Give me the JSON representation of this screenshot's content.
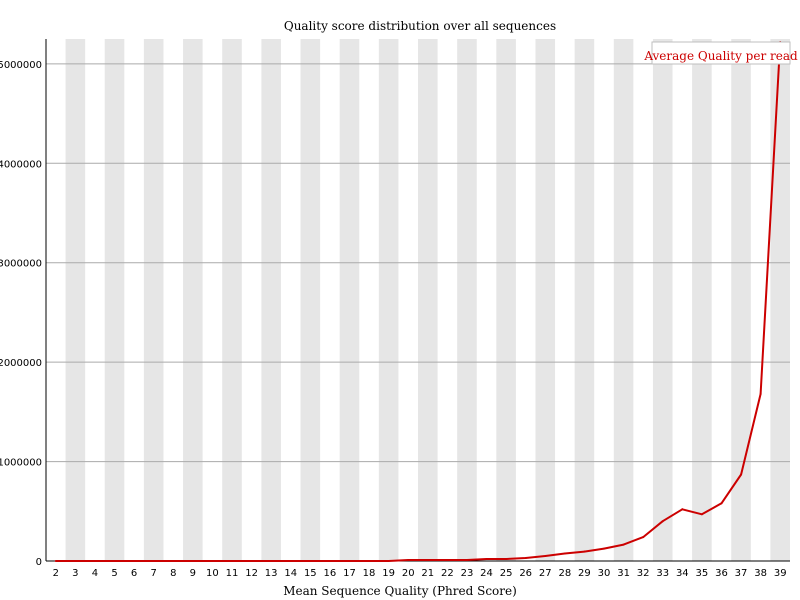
{
  "chart_data": {
    "type": "line",
    "title": "Quality score distribution over all sequences",
    "xlabel": "Mean Sequence Quality (Phred Score)",
    "ylabel": "",
    "x": [
      2,
      3,
      4,
      5,
      6,
      7,
      8,
      9,
      10,
      11,
      12,
      13,
      14,
      15,
      16,
      17,
      18,
      19,
      20,
      21,
      22,
      23,
      24,
      25,
      26,
      27,
      28,
      29,
      30,
      31,
      32,
      33,
      34,
      35,
      36,
      37,
      38,
      39
    ],
    "series": [
      {
        "name": "Average Quality per read",
        "color": "#cc0000",
        "values": [
          0,
          0,
          0,
          0,
          0,
          0,
          0,
          0,
          0,
          0,
          0,
          0,
          0,
          0,
          0,
          0,
          0,
          0,
          10000,
          10000,
          10000,
          10000,
          20000,
          20000,
          30000,
          50000,
          75000,
          95000,
          125000,
          165000,
          240000,
          400000,
          520000,
          470000,
          580000,
          870000,
          1680000,
          5220000
        ]
      }
    ],
    "ylim": [
      0,
      5250000
    ],
    "yticks": [
      0,
      1000000,
      2000000,
      3000000,
      4000000,
      5000000
    ],
    "ytick_labels": [
      "0",
      "1000000",
      "2000000",
      "3000000",
      "4000000",
      "5000000"
    ],
    "xtick_labels": [
      "2",
      "3",
      "4",
      "5",
      "6",
      "7",
      "8",
      "9",
      "10",
      "11",
      "12",
      "13",
      "14",
      "15",
      "16",
      "17",
      "18",
      "19",
      "20",
      "21",
      "22",
      "23",
      "24",
      "25",
      "26",
      "27",
      "28",
      "29",
      "30",
      "31",
      "32",
      "33",
      "34",
      "35",
      "36",
      "37",
      "38",
      "39"
    ],
    "grid": true,
    "legend_placement": "top-right",
    "colors": {
      "band": "#e6e6e6",
      "grid": "#aaaaaa",
      "axis": "#000000",
      "line": "#cc0000",
      "legend_border": "#bfbfbf"
    }
  }
}
